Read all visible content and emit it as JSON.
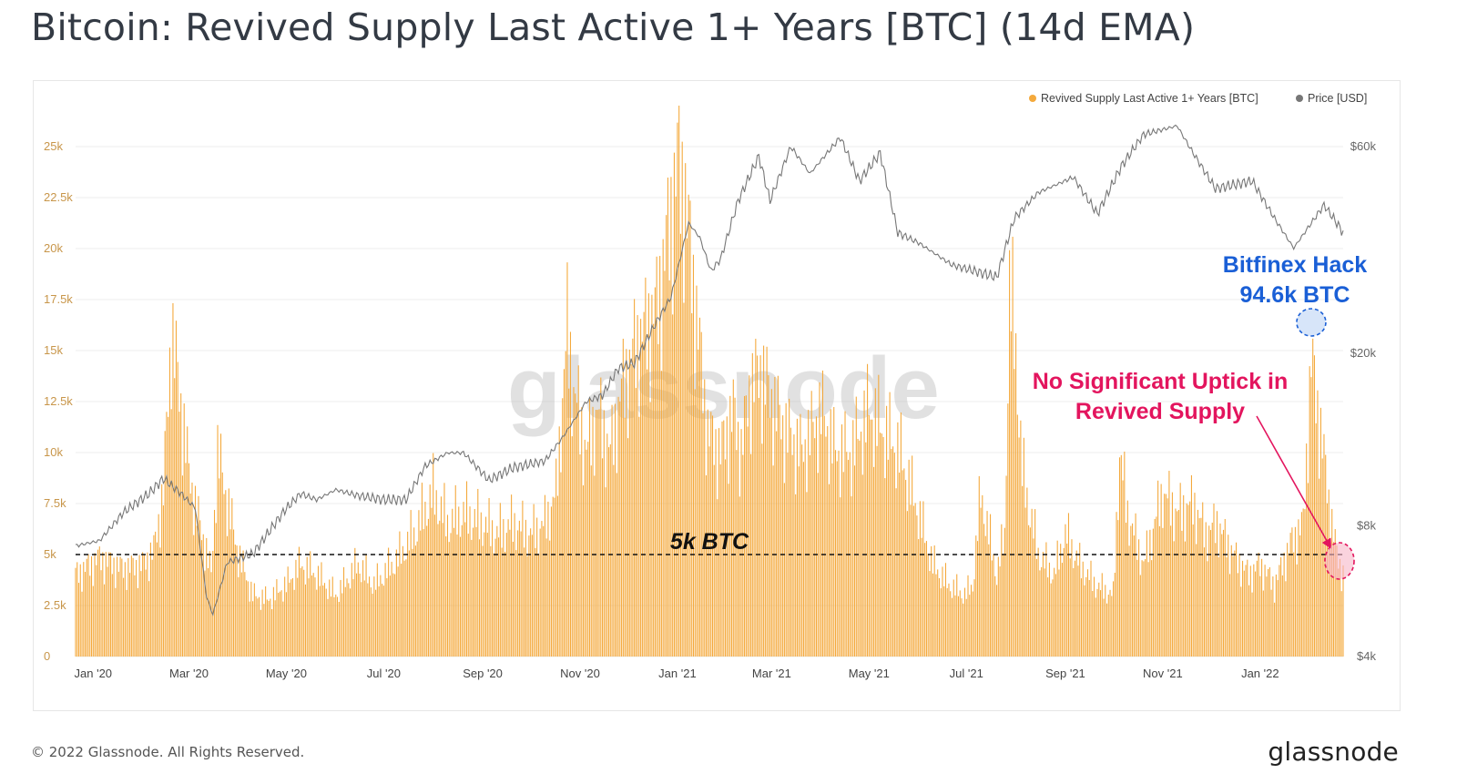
{
  "page": {
    "title": "Bitcoin: Revived Supply Last Active 1+ Years [BTC] (14d EMA)",
    "copyright": "© 2022 Glassnode. All Rights Reserved.",
    "logo": "glassnode",
    "watermark": "glassnode"
  },
  "colors": {
    "bars": "#f4a93c",
    "price_line": "#777777",
    "grid": "#ececec",
    "axis_text_left": "#c8964a",
    "axis_text_right": "#666666",
    "annotation_blue": "#1a5fd6",
    "annotation_pink": "#e3155e"
  },
  "chart_data": {
    "type": "bar",
    "legend": {
      "placement": "top-right",
      "items": [
        {
          "label": "Revived Supply Last Active 1+ Years [BTC]",
          "color": "#f4a93c"
        },
        {
          "label": "Price [USD]",
          "color": "#777777"
        }
      ]
    },
    "x_ticks": [
      "Jan '20",
      "Mar '20",
      "May '20",
      "Jul '20",
      "Sep '20",
      "Nov '20",
      "Jan '21",
      "Mar '21",
      "May '21",
      "Jul '21",
      "Sep '21",
      "Nov '21",
      "Jan '22"
    ],
    "y_left": {
      "ticks": [
        "0",
        "2.5k",
        "5k",
        "7.5k",
        "10k",
        "12.5k",
        "15k",
        "17.5k",
        "20k",
        "22.5k",
        "25k"
      ],
      "range": [
        0,
        25000
      ]
    },
    "y_right": {
      "ticks": [
        "$4k",
        "$8k",
        "$20k",
        "$60k"
      ],
      "scale": "log",
      "range": [
        4000,
        60000
      ]
    },
    "x_range": [
      "2019-12-21",
      "2022-02-22"
    ],
    "grid": true,
    "series": [
      {
        "name": "Revived Supply Last Active 1+ Years [BTC]",
        "kind": "bar",
        "points": [
          [
            "2019-12-21",
            4000
          ],
          [
            "2020-01-05",
            4800
          ],
          [
            "2020-01-20",
            4300
          ],
          [
            "2020-02-01",
            4500
          ],
          [
            "2020-02-08",
            5200
          ],
          [
            "2020-02-14",
            8000
          ],
          [
            "2020-02-19",
            16000
          ],
          [
            "2020-02-24",
            13000
          ],
          [
            "2020-03-01",
            9000
          ],
          [
            "2020-03-06",
            7000
          ],
          [
            "2020-03-11",
            5500
          ],
          [
            "2020-03-15",
            4000
          ],
          [
            "2020-03-19",
            10000
          ],
          [
            "2020-03-24",
            8000
          ],
          [
            "2020-04-01",
            5000
          ],
          [
            "2020-04-10",
            3000
          ],
          [
            "2020-04-20",
            2800
          ],
          [
            "2020-05-01",
            3500
          ],
          [
            "2020-05-10",
            4500
          ],
          [
            "2020-05-20",
            4000
          ],
          [
            "2020-06-01",
            3000
          ],
          [
            "2020-06-15",
            4500
          ],
          [
            "2020-06-25",
            3500
          ],
          [
            "2020-07-10",
            4800
          ],
          [
            "2020-07-20",
            6000
          ],
          [
            "2020-08-01",
            8000
          ],
          [
            "2020-08-10",
            6500
          ],
          [
            "2020-08-20",
            7000
          ],
          [
            "2020-09-01",
            6500
          ],
          [
            "2020-09-10",
            6000
          ],
          [
            "2020-09-20",
            6500
          ],
          [
            "2020-10-01",
            6000
          ],
          [
            "2020-10-10",
            6500
          ],
          [
            "2020-10-17",
            8000
          ],
          [
            "2020-10-24",
            16000
          ],
          [
            "2020-10-28",
            13000
          ],
          [
            "2020-11-05",
            10000
          ],
          [
            "2020-11-12",
            12000
          ],
          [
            "2020-11-20",
            10000
          ],
          [
            "2020-11-27",
            13000
          ],
          [
            "2020-12-05",
            15000
          ],
          [
            "2020-12-12",
            16000
          ],
          [
            "2020-12-19",
            17000
          ],
          [
            "2020-12-27",
            21000
          ],
          [
            "2021-01-01",
            24000
          ],
          [
            "2021-01-05",
            23000
          ],
          [
            "2021-01-10",
            19000
          ],
          [
            "2021-01-15",
            15000
          ],
          [
            "2021-01-20",
            11000
          ],
          [
            "2021-01-28",
            10000
          ],
          [
            "2021-02-05",
            12000
          ],
          [
            "2021-02-10",
            10000
          ],
          [
            "2021-02-15",
            13000
          ],
          [
            "2021-02-22",
            14000
          ],
          [
            "2021-03-01",
            12500
          ],
          [
            "2021-03-10",
            11000
          ],
          [
            "2021-03-20",
            10000
          ],
          [
            "2021-04-01",
            12000
          ],
          [
            "2021-04-10",
            10000
          ],
          [
            "2021-04-20",
            10000
          ],
          [
            "2021-05-01",
            12000
          ],
          [
            "2021-05-10",
            11000
          ],
          [
            "2021-05-20",
            10000
          ],
          [
            "2021-06-01",
            7000
          ],
          [
            "2021-06-10",
            4500
          ],
          [
            "2021-06-20",
            3500
          ],
          [
            "2021-06-30",
            3000
          ],
          [
            "2021-07-05",
            3500
          ],
          [
            "2021-07-10",
            8000
          ],
          [
            "2021-07-15",
            6000
          ],
          [
            "2021-07-20",
            4000
          ],
          [
            "2021-07-25",
            6000
          ],
          [
            "2021-07-28",
            18000
          ],
          [
            "2021-08-01",
            15000
          ],
          [
            "2021-08-05",
            9000
          ],
          [
            "2021-08-15",
            5000
          ],
          [
            "2021-08-25",
            4000
          ],
          [
            "2021-09-01",
            6000
          ],
          [
            "2021-09-10",
            4500
          ],
          [
            "2021-09-20",
            3500
          ],
          [
            "2021-10-01",
            3000
          ],
          [
            "2021-10-05",
            10000
          ],
          [
            "2021-10-10",
            7000
          ],
          [
            "2021-10-20",
            4500
          ],
          [
            "2021-11-01",
            8000
          ],
          [
            "2021-11-10",
            7000
          ],
          [
            "2021-11-20",
            7500
          ],
          [
            "2021-11-28",
            6000
          ],
          [
            "2021-12-05",
            6500
          ],
          [
            "2021-12-15",
            5000
          ],
          [
            "2021-12-25",
            4000
          ],
          [
            "2022-01-01",
            4500
          ],
          [
            "2022-01-10",
            3500
          ],
          [
            "2022-01-20",
            5500
          ],
          [
            "2022-01-28",
            6500
          ],
          [
            "2022-02-02",
            14500
          ],
          [
            "2022-02-08",
            11000
          ],
          [
            "2022-02-14",
            7000
          ],
          [
            "2022-02-18",
            5000
          ],
          [
            "2022-02-22",
            4000
          ]
        ]
      },
      {
        "name": "Price [USD]",
        "kind": "line",
        "axis": "right",
        "points": [
          [
            "2019-12-21",
            7200
          ],
          [
            "2020-01-05",
            7400
          ],
          [
            "2020-01-20",
            8600
          ],
          [
            "2020-02-05",
            9500
          ],
          [
            "2020-02-14",
            10300
          ],
          [
            "2020-02-25",
            9500
          ],
          [
            "2020-03-05",
            8800
          ],
          [
            "2020-03-12",
            5500
          ],
          [
            "2020-03-16",
            5000
          ],
          [
            "2020-03-25",
            6600
          ],
          [
            "2020-04-10",
            6900
          ],
          [
            "2020-04-30",
            8700
          ],
          [
            "2020-05-10",
            9500
          ],
          [
            "2020-05-20",
            9200
          ],
          [
            "2020-06-01",
            9700
          ],
          [
            "2020-06-15",
            9400
          ],
          [
            "2020-07-01",
            9200
          ],
          [
            "2020-07-15",
            9200
          ],
          [
            "2020-07-27",
            11000
          ],
          [
            "2020-08-10",
            11800
          ],
          [
            "2020-08-20",
            11800
          ],
          [
            "2020-09-05",
            10200
          ],
          [
            "2020-09-20",
            10900
          ],
          [
            "2020-10-10",
            11300
          ],
          [
            "2020-10-21",
            12800
          ],
          [
            "2020-11-05",
            15500
          ],
          [
            "2020-11-15",
            16000
          ],
          [
            "2020-11-25",
            18500
          ],
          [
            "2020-12-05",
            19000
          ],
          [
            "2020-12-17",
            23000
          ],
          [
            "2020-12-28",
            27000
          ],
          [
            "2021-01-08",
            40000
          ],
          [
            "2021-01-15",
            37000
          ],
          [
            "2021-01-22",
            31000
          ],
          [
            "2021-01-28",
            33000
          ],
          [
            "2021-02-08",
            45000
          ],
          [
            "2021-02-21",
            57000
          ],
          [
            "2021-02-28",
            45000
          ],
          [
            "2021-03-13",
            60000
          ],
          [
            "2021-03-25",
            52000
          ],
          [
            "2021-04-13",
            63000
          ],
          [
            "2021-04-25",
            50000
          ],
          [
            "2021-05-08",
            58000
          ],
          [
            "2021-05-19",
            38000
          ],
          [
            "2021-06-01",
            36000
          ],
          [
            "2021-06-22",
            32000
          ],
          [
            "2021-07-20",
            30000
          ],
          [
            "2021-07-31",
            41000
          ],
          [
            "2021-08-15",
            47000
          ],
          [
            "2021-09-06",
            51000
          ],
          [
            "2021-09-21",
            42000
          ],
          [
            "2021-10-06",
            54000
          ],
          [
            "2021-10-20",
            64000
          ],
          [
            "2021-11-10",
            67000
          ],
          [
            "2021-11-20",
            58000
          ],
          [
            "2021-12-04",
            48000
          ],
          [
            "2021-12-27",
            50000
          ],
          [
            "2022-01-10",
            41000
          ],
          [
            "2022-01-22",
            35000
          ],
          [
            "2022-02-10",
            44000
          ],
          [
            "2022-02-18",
            40000
          ],
          [
            "2022-02-22",
            38000
          ]
        ]
      }
    ],
    "reference_line": {
      "value": 5000,
      "label": "5k BTC"
    },
    "annotations": [
      {
        "lines": [
          "Bitfinex Hack",
          "94.6k BTC"
        ],
        "color": "#1a5fd6",
        "date": "2022-02-02",
        "value": 16000
      },
      {
        "lines": [
          "No Significant Uptick in",
          "Revived Supply"
        ],
        "color": "#e3155e",
        "date": "2022-02-22",
        "value": 4700
      }
    ]
  }
}
